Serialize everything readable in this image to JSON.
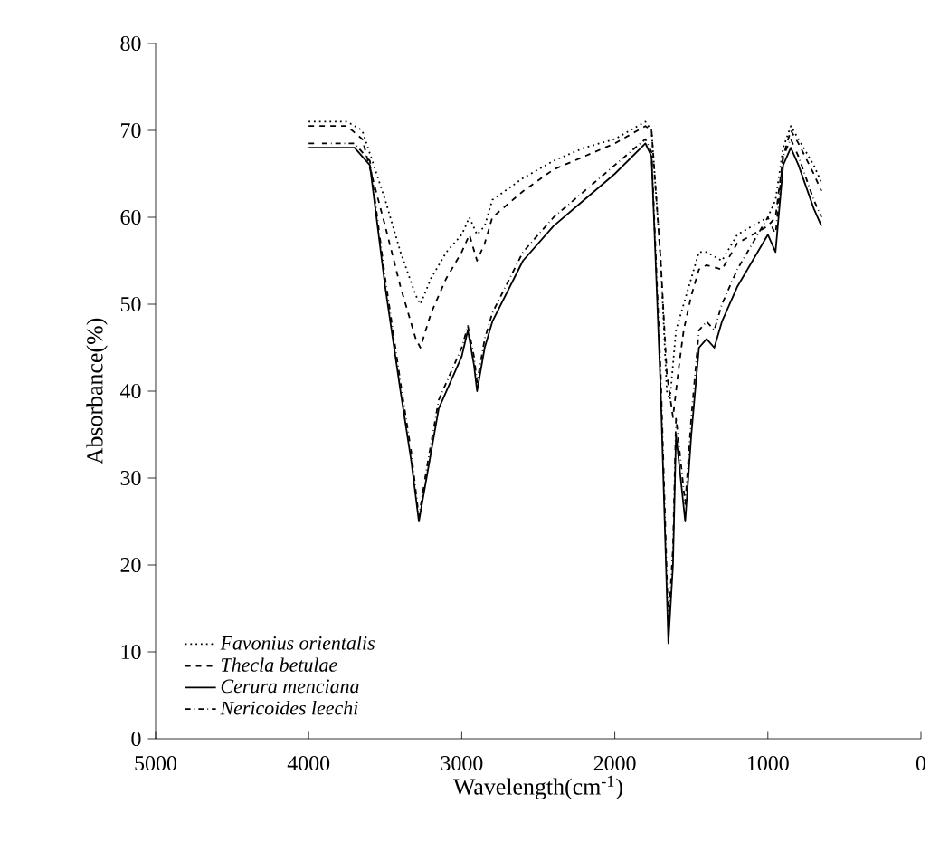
{
  "chart_data": {
    "type": "line",
    "xlabel": "Wavelength(cm$^{-1}$)",
    "ylabel": "Absorbance(%)",
    "xlim": [
      5000,
      0
    ],
    "xticks": [
      5000,
      4000,
      3000,
      2000,
      1000,
      0
    ],
    "ylim": [
      0,
      80
    ],
    "yticks": [
      0,
      10,
      20,
      30,
      40,
      50,
      60,
      70,
      80
    ],
    "legend": "bottom left",
    "marker": "none",
    "series": [
      {
        "name": "Favonius orientalis",
        "color": "#000000",
        "line_style": "dotted",
        "x": [
          4000,
          3750,
          3650,
          3500,
          3400,
          3300,
          3270,
          3200,
          3100,
          3000,
          2950,
          2900,
          2850,
          2800,
          2600,
          2400,
          2200,
          2000,
          1800,
          1760,
          1700,
          1660,
          1640,
          1600,
          1550,
          1500,
          1450,
          1400,
          1300,
          1200,
          1100,
          1000,
          950,
          900,
          850,
          800,
          700,
          650
        ],
        "values": [
          71,
          71,
          70,
          62,
          56,
          51,
          50,
          53,
          56,
          58,
          60,
          58,
          59,
          62,
          64.5,
          66.5,
          68,
          69,
          71,
          70,
          55,
          40,
          39,
          47,
          50,
          53,
          56,
          56,
          55,
          58,
          59,
          60,
          62,
          68,
          70.5,
          69,
          66,
          64
        ]
      },
      {
        "name": "Thecla betulae",
        "color": "#000000",
        "line_style": "dashed",
        "x": [
          4000,
          3750,
          3650,
          3500,
          3400,
          3300,
          3270,
          3200,
          3100,
          3000,
          2950,
          2900,
          2850,
          2800,
          2600,
          2400,
          2200,
          2000,
          1800,
          1760,
          1700,
          1660,
          1620,
          1580,
          1550,
          1500,
          1450,
          1400,
          1300,
          1200,
          1100,
          1000,
          950,
          900,
          850,
          800,
          700,
          650
        ],
        "values": [
          70.5,
          70.5,
          69,
          59,
          52,
          46,
          45,
          49,
          53,
          56,
          58,
          55,
          57,
          60,
          63,
          65.5,
          67,
          68.5,
          70.5,
          70,
          55,
          42,
          37,
          43,
          47,
          51,
          54,
          54.5,
          54,
          57,
          58,
          59,
          60,
          67,
          70,
          68.5,
          65,
          63
        ]
      },
      {
        "name": "Cerura menciana",
        "color": "#000000",
        "line_style": "solid",
        "x": [
          4000,
          3700,
          3600,
          3500,
          3400,
          3330,
          3280,
          3230,
          3150,
          3050,
          3000,
          2960,
          2920,
          2900,
          2850,
          2800,
          2600,
          2400,
          2200,
          2000,
          1800,
          1760,
          1700,
          1650,
          1620,
          1600,
          1570,
          1540,
          1500,
          1450,
          1400,
          1350,
          1300,
          1200,
          1100,
          1000,
          950,
          900,
          850,
          800,
          700,
          650
        ],
        "values": [
          68,
          68,
          66,
          52,
          40,
          32,
          25,
          30,
          38,
          42,
          44,
          47,
          43,
          40,
          45,
          48,
          55,
          59,
          62,
          65,
          68.5,
          67,
          40,
          11,
          20,
          35,
          30,
          25,
          35,
          45,
          46,
          45,
          48,
          52,
          55,
          58,
          56,
          66,
          68,
          66,
          61,
          59
        ]
      },
      {
        "name": "Nericoides leechi",
        "color": "#000000",
        "line_style": "dashdot",
        "x": [
          4000,
          3700,
          3600,
          3500,
          3400,
          3330,
          3280,
          3230,
          3150,
          3050,
          3000,
          2960,
          2920,
          2900,
          2850,
          2800,
          2600,
          2400,
          2200,
          2000,
          1800,
          1760,
          1700,
          1650,
          1620,
          1600,
          1570,
          1540,
          1500,
          1450,
          1400,
          1350,
          1300,
          1200,
          1100,
          1000,
          950,
          900,
          850,
          800,
          700,
          650
        ],
        "values": [
          68.5,
          68.5,
          66.5,
          53,
          41,
          33,
          25.5,
          31,
          39,
          43,
          45,
          47.5,
          44,
          41,
          46,
          49,
          56,
          60,
          63,
          66,
          69,
          67.5,
          42,
          13,
          22,
          37,
          32,
          27,
          37,
          47,
          48,
          47,
          50,
          54,
          57,
          60,
          58,
          67,
          69,
          67,
          62,
          60
        ]
      }
    ]
  }
}
